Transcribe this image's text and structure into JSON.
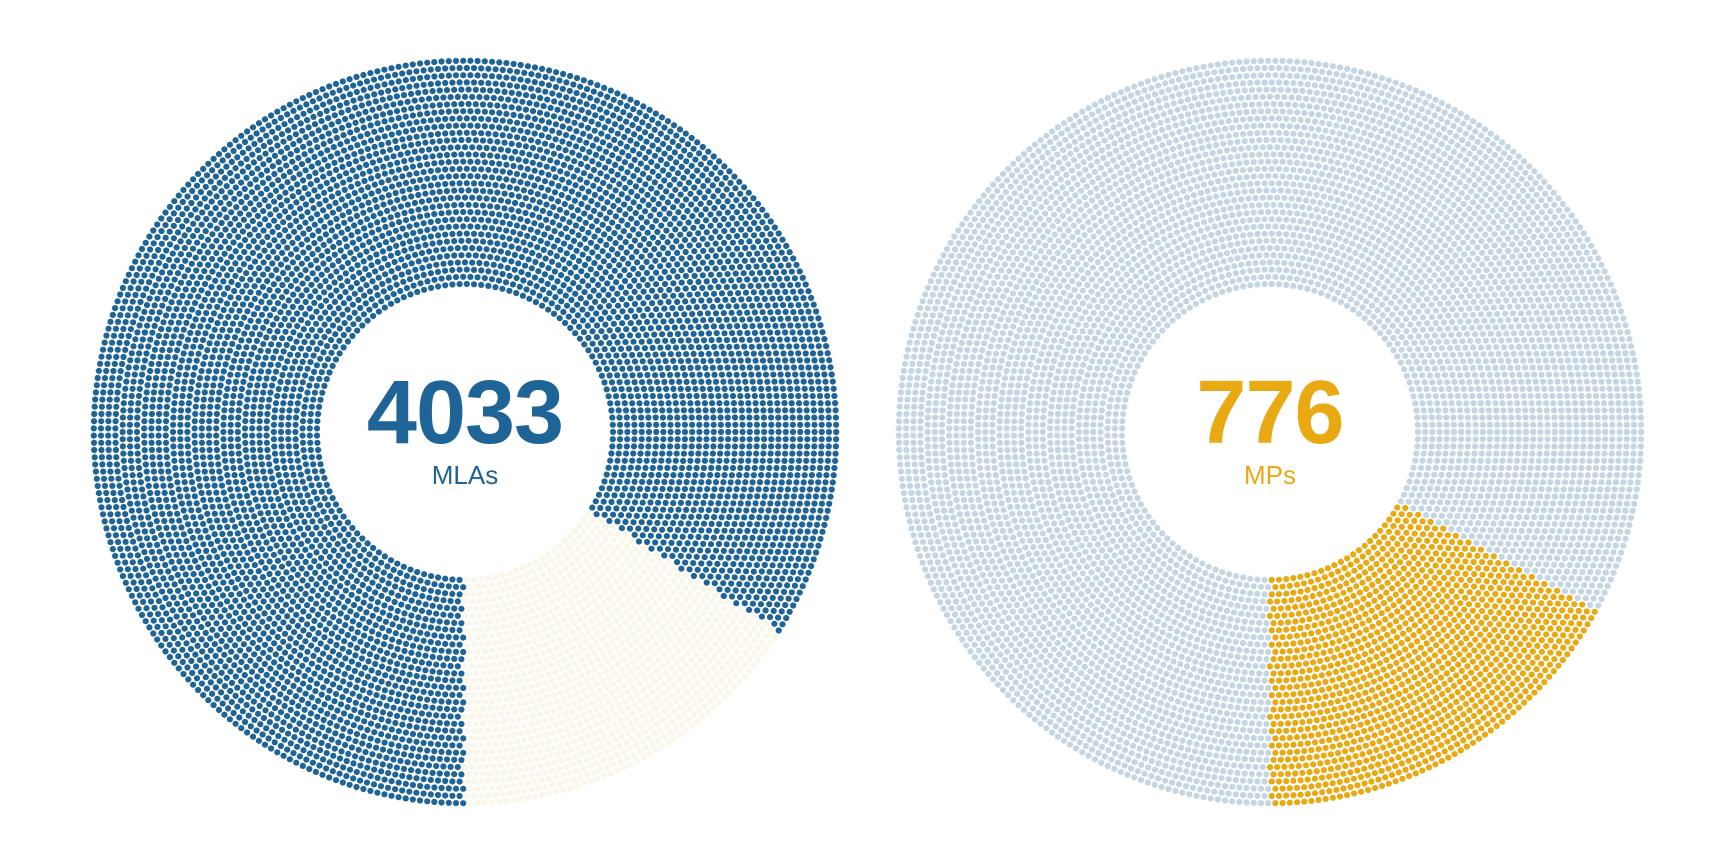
{
  "chart_data": [
    {
      "type": "pie",
      "variant": "dot-donut",
      "total_label": "4033",
      "unit_label": "MLAs",
      "highlight_fraction": 0.16,
      "colors": {
        "main": "#1f6496",
        "highlight": "#fbf7e8",
        "number": "#1f6496"
      }
    },
    {
      "type": "pie",
      "variant": "dot-donut",
      "total_label": "776",
      "unit_label": "MPs",
      "highlight_fraction": 0.17,
      "colors": {
        "main": "#c4d5e3",
        "highlight": "#e8a913",
        "number": "#e8a913"
      }
    }
  ]
}
